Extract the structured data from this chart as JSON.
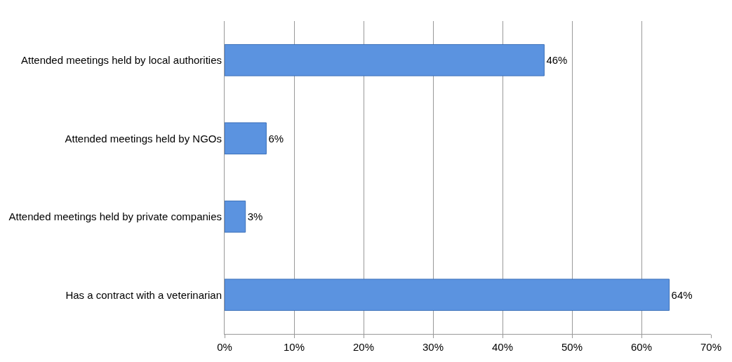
{
  "chart_data": {
    "type": "bar",
    "orientation": "horizontal",
    "categories": [
      "Attended meetings held by local authorities",
      "Attended meetings held by NGOs",
      "Attended meetings held by private companies",
      "Has a contract with a veterinarian"
    ],
    "values": [
      46,
      6,
      3,
      64
    ],
    "value_labels": [
      "46%",
      "6%",
      "3%",
      "64%"
    ],
    "color": "#5b93e0",
    "xlim": [
      0,
      70
    ],
    "xticks": [
      {
        "value": 0,
        "label": "0%"
      },
      {
        "value": 10,
        "label": "10%"
      },
      {
        "value": 20,
        "label": "20%"
      },
      {
        "value": 30,
        "label": "30%"
      },
      {
        "value": 40,
        "label": "40%"
      },
      {
        "value": 50,
        "label": "50%"
      },
      {
        "value": 60,
        "label": "60%"
      },
      {
        "value": 70,
        "label": "70%"
      }
    ],
    "grid": "x",
    "legend": false
  }
}
